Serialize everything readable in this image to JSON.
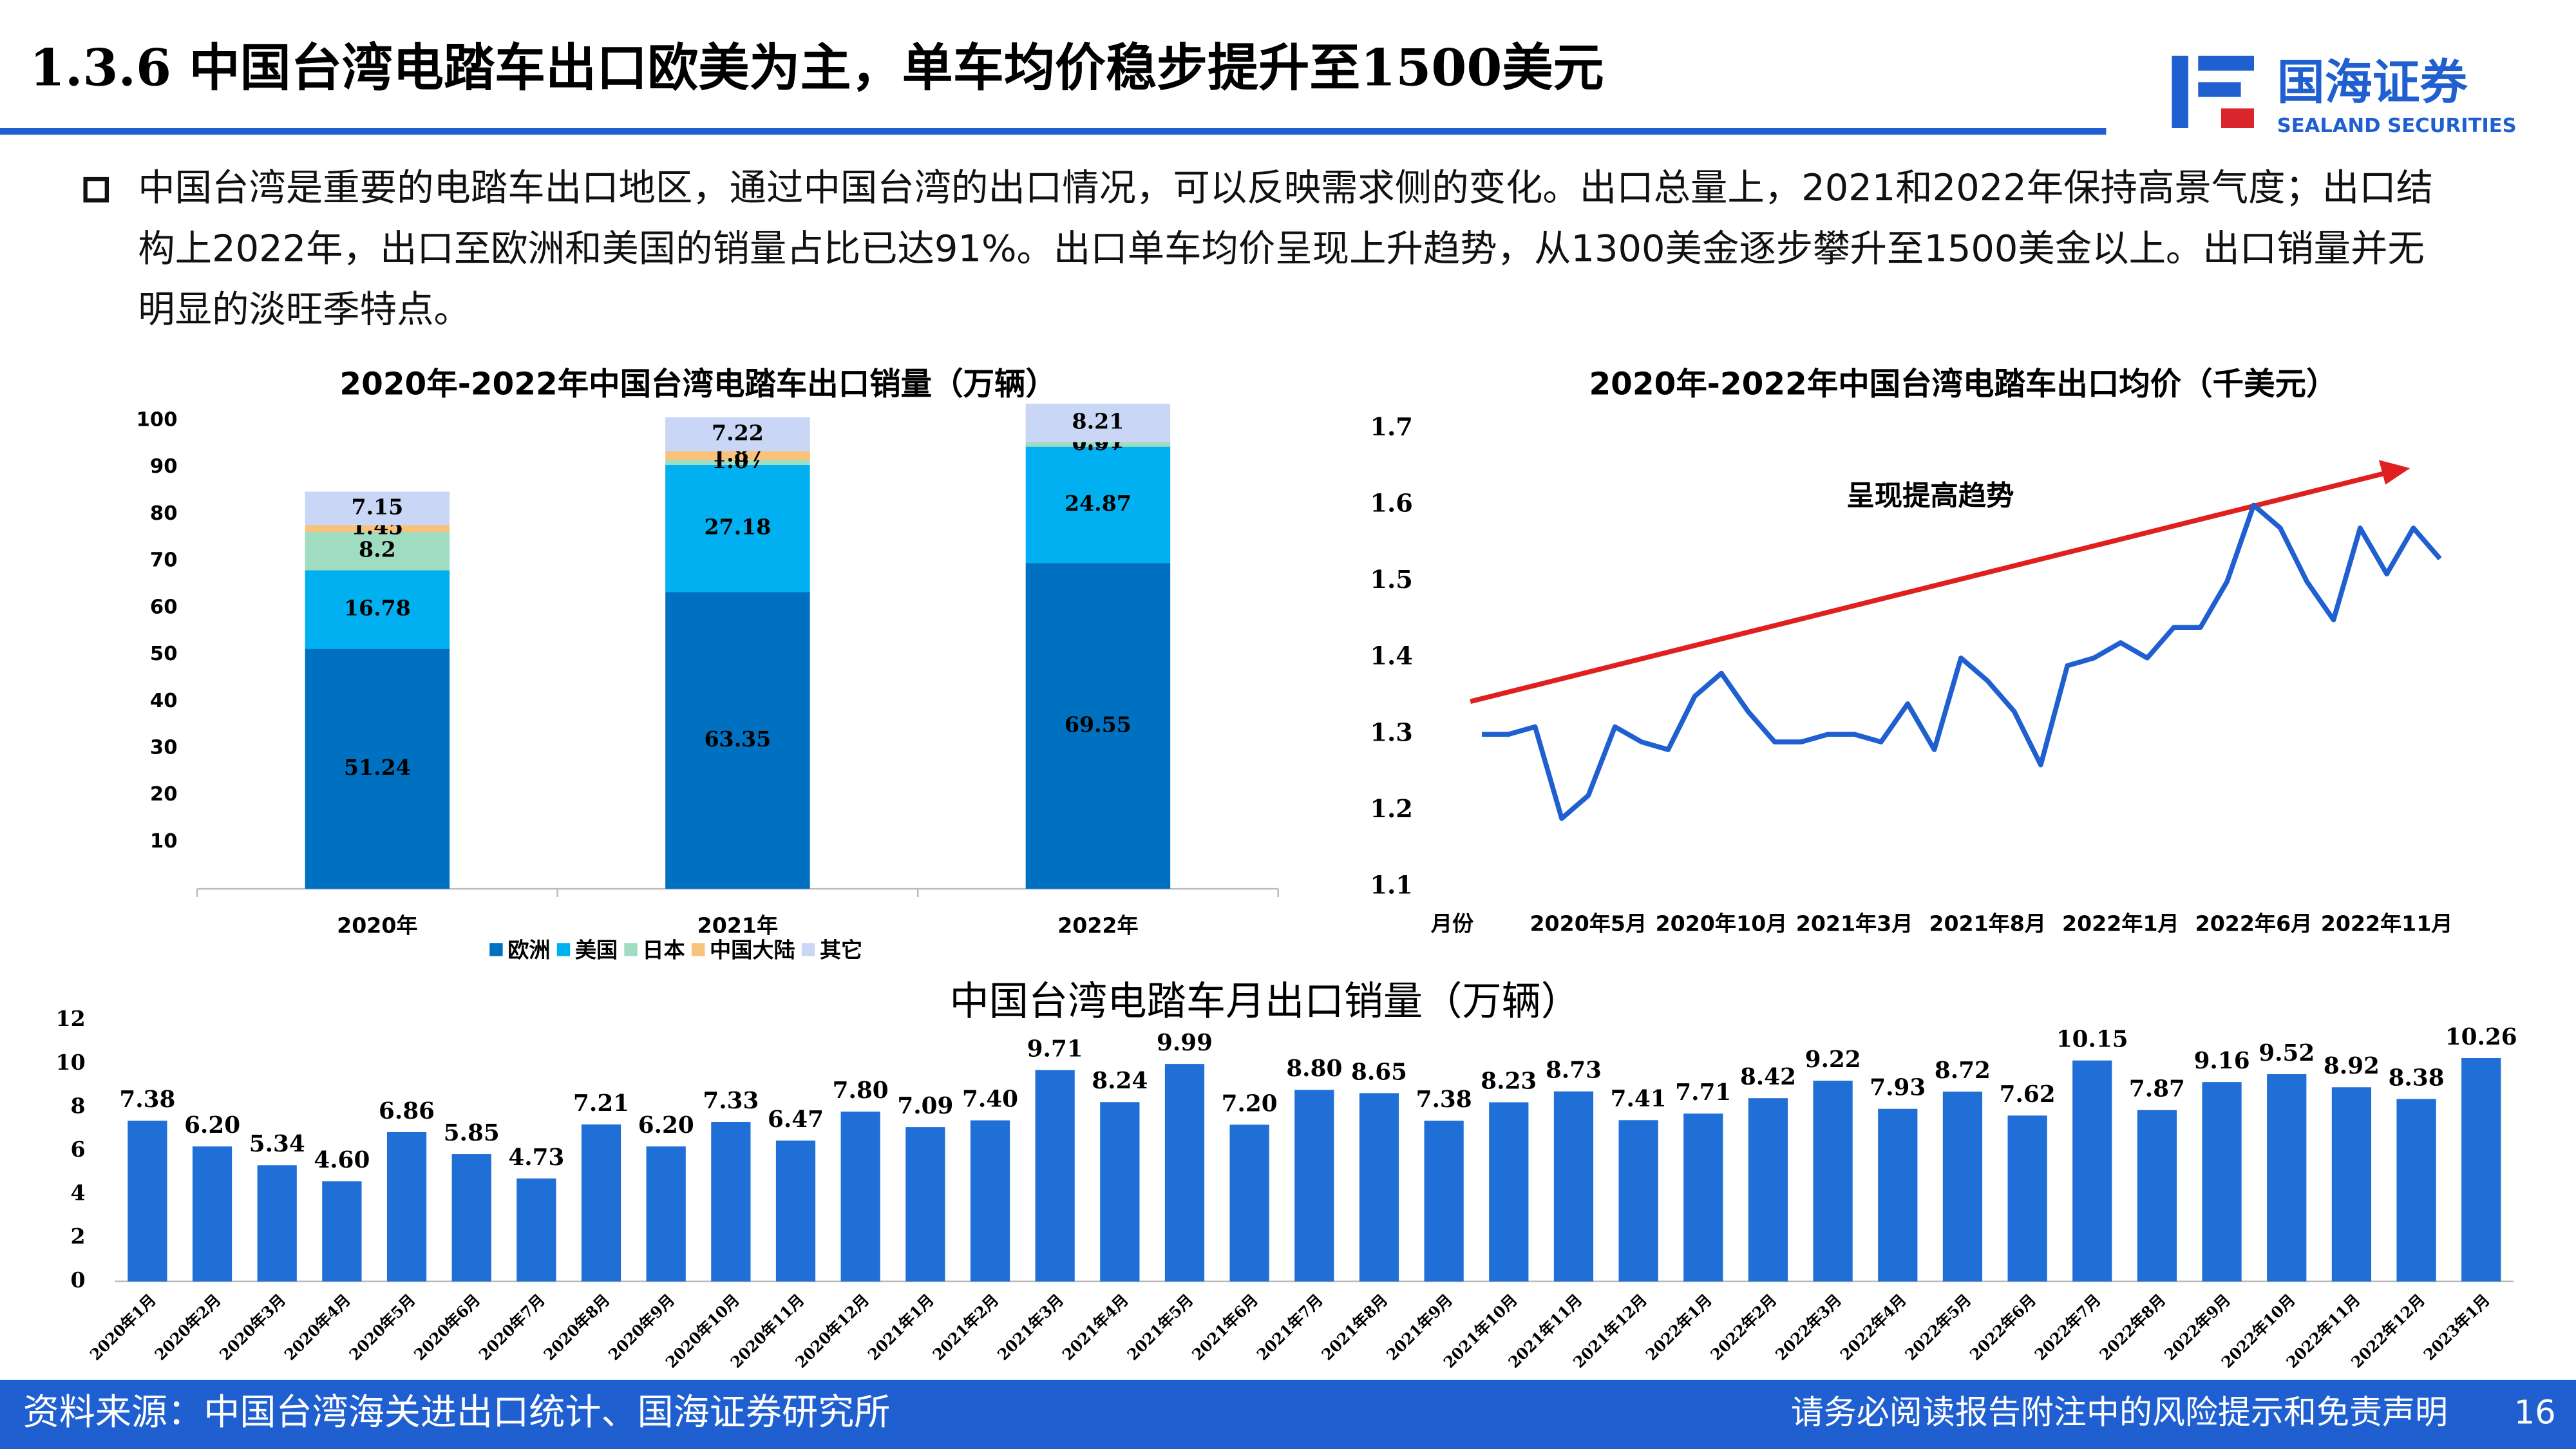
{
  "header": {
    "title": "1.3.6 中国台湾电踏车出口欧美为主，单车均价稳步提升至1500美元",
    "logo": "国海证券",
    "logo_sub": "SEALAND SECURITIES"
  },
  "bullet": "中国台湾是重要的电踏车出口地区，通过中国台湾的出口情况，可以反映需求侧的变化。出口总量上，2021和2022年保持高景气度；出口结构上2022年，出口至欧洲和美国的销量占比已达91%。出口单车均价呈现上升趋势，从1300美金逐步攀升至1500美金以上。出口销量并无明显的淡旺季特点。",
  "chart_data": [
    {
      "type": "stacked_bar",
      "title": "2020年-2022年中国台湾电踏车出口销量（万辆）",
      "categories": [
        "2020年",
        "2021年",
        "2022年"
      ],
      "series": [
        {
          "name": "欧洲",
          "color": "#0070c0",
          "values": [
            51.24,
            63.35,
            69.55
          ]
        },
        {
          "name": "美国",
          "color": "#00b0f0",
          "values": [
            16.78,
            27.18,
            24.87
          ]
        },
        {
          "name": "日本",
          "color": "#9fdcc0",
          "values": [
            8.2,
            1.07,
            0.97
          ]
        },
        {
          "name": "中国大陆",
          "color": "#f9c27a",
          "values": [
            1.45,
            1.87,
            0.01
          ]
        },
        {
          "name": "其它",
          "color": "#c9d6f6",
          "values": [
            7.15,
            7.22,
            8.21
          ]
        }
      ],
      "ylim": [
        0,
        100
      ],
      "yticks": [
        10,
        20,
        30,
        40,
        50,
        60,
        70,
        80,
        90,
        100
      ],
      "legend": "bottom"
    },
    {
      "type": "line",
      "title": "2020年-2022年中国台湾电踏车出口均价（千美元）",
      "x_label": "月份",
      "annotation": "呈现提高趋势",
      "color": "#1f5fd0",
      "categories": [
        null,
        null,
        null,
        null,
        "2020年5月",
        null,
        null,
        null,
        null,
        "2020年10月",
        null,
        null,
        null,
        null,
        "2021年3月",
        null,
        null,
        null,
        null,
        "2021年8月",
        null,
        null,
        null,
        null,
        "2022年1月",
        null,
        null,
        null,
        null,
        "2022年6月",
        null,
        null,
        null,
        null,
        "2022年11月",
        null,
        null
      ],
      "values": [
        1.3,
        1.3,
        1.31,
        1.19,
        1.22,
        1.31,
        1.29,
        1.28,
        1.35,
        1.38,
        1.33,
        1.29,
        1.29,
        1.3,
        1.3,
        1.29,
        1.34,
        1.28,
        1.4,
        1.37,
        1.33,
        1.26,
        1.39,
        1.4,
        1.42,
        1.4,
        1.44,
        1.44,
        1.5,
        1.6,
        1.57,
        1.5,
        1.45,
        1.57,
        1.51,
        1.57,
        1.53
      ],
      "ylim": [
        1.1,
        1.7
      ],
      "yticks": [
        1.1,
        1.2,
        1.3,
        1.4,
        1.5,
        1.6,
        1.7
      ]
    },
    {
      "type": "bar",
      "title": "中国台湾电踏车月出口销量（万辆）",
      "color": "#1f6fd6",
      "categories": [
        "2020年1月",
        "2020年2月",
        "2020年3月",
        "2020年4月",
        "2020年5月",
        "2020年6月",
        "2020年7月",
        "2020年8月",
        "2020年9月",
        "2020年10月",
        "2020年11月",
        "2020年12月",
        "2021年1月",
        "2021年2月",
        "2021年3月",
        "2021年4月",
        "2021年5月",
        "2021年6月",
        "2021年7月",
        "2021年8月",
        "2021年9月",
        "2021年10月",
        "2021年11月",
        "2021年12月",
        "2022年1月",
        "2022年2月",
        "2022年3月",
        "2022年4月",
        "2022年5月",
        "2022年6月",
        "2022年7月",
        "2022年8月",
        "2022年9月",
        "2022年10月",
        "2022年11月",
        "2022年12月",
        "2023年1月"
      ],
      "values": [
        7.38,
        6.2,
        5.34,
        4.6,
        6.86,
        5.85,
        4.73,
        7.21,
        6.2,
        7.33,
        6.47,
        7.8,
        7.09,
        7.4,
        9.71,
        8.24,
        9.99,
        7.2,
        8.8,
        8.65,
        7.38,
        8.23,
        8.73,
        7.41,
        7.71,
        8.42,
        9.22,
        7.93,
        8.72,
        7.62,
        10.15,
        7.87,
        9.16,
        9.52,
        8.92,
        8.38,
        10.26
      ],
      "value_labels": [
        "7.38",
        "6.20",
        "5.34",
        "4.60",
        "6.86",
        "5.85",
        "4.73",
        "7.21",
        "6.20",
        "7.33",
        "6.47",
        "7.80",
        "7.09",
        "7.40",
        "9.71",
        "8.24",
        "9.99",
        "7.20",
        "8.80",
        "8.65",
        "7.38",
        "8.23",
        "8.73",
        "7.41",
        "7.71",
        "8.42",
        "9.22",
        "7.93",
        "8.72",
        "7.62",
        "10.15",
        "7.87",
        "9.16",
        "9.52",
        "8.92",
        "8.38",
        "10.26"
      ],
      "ylim": [
        0,
        12
      ],
      "yticks": [
        0,
        2,
        4,
        6,
        8,
        10,
        12
      ]
    }
  ],
  "footer": {
    "source": "资料来源：中国台湾海关进出口统计、国海证券研究所",
    "disclaimer": "请务必阅读报告附注中的风险提示和免责声明",
    "page": "16"
  }
}
